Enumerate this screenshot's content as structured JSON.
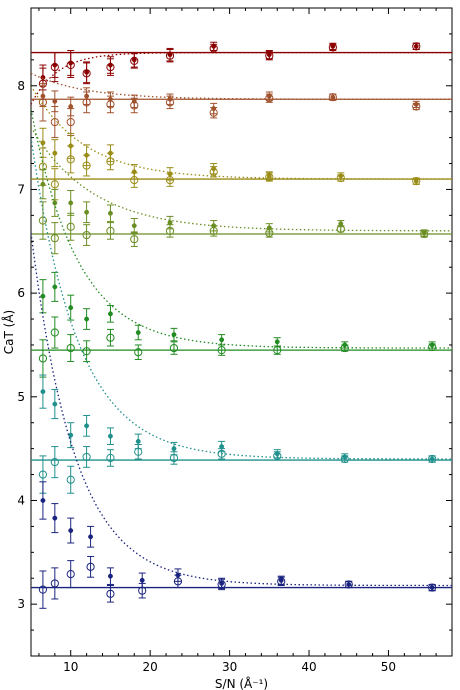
{
  "chart_data": {
    "type": "scatter",
    "xlabel": "S/N (Å⁻¹)",
    "ylabel": "CaT (Å)",
    "xlim": [
      5,
      58
    ],
    "ylim": [
      2.5,
      8.75
    ],
    "x_ticks": [
      10,
      20,
      30,
      40,
      50
    ],
    "y_ticks": [
      3,
      4,
      5,
      6,
      7,
      8
    ],
    "grid": false,
    "legend": "none",
    "series": [
      {
        "color": "#8b0000",
        "reference_value": 8.32,
        "fit_curve": {
          "asymptote": 8.32,
          "amplitude": -0.5,
          "decay": 0.3
        },
        "filled": [
          [
            6.5,
            8.08
          ],
          [
            8,
            8.2
          ],
          [
            10,
            8.22
          ],
          [
            12,
            8.13
          ],
          [
            15,
            8.2
          ],
          [
            18,
            8.25
          ],
          [
            22.5,
            8.3
          ],
          [
            28,
            8.38
          ],
          [
            35,
            8.3
          ],
          [
            43,
            8.38
          ],
          [
            53.5,
            8.38
          ]
        ],
        "filled_err": [
          0.12,
          0.12,
          0.12,
          0.1,
          0.08,
          0.07,
          0.06,
          0.04,
          0.04,
          0.03,
          0.03
        ],
        "open": [
          [
            6.5,
            8.02
          ],
          [
            8,
            8.18
          ],
          [
            10,
            8.2
          ],
          [
            12,
            8.12
          ],
          [
            15,
            8.18
          ],
          [
            18,
            8.24
          ],
          [
            22.5,
            8.29
          ],
          [
            28,
            8.36
          ],
          [
            35,
            8.29
          ],
          [
            43,
            8.37
          ],
          [
            53.5,
            8.38
          ]
        ],
        "open_err": [
          0.15,
          0.14,
          0.12,
          0.1,
          0.08,
          0.07,
          0.06,
          0.04,
          0.04,
          0.03,
          0.03
        ]
      },
      {
        "color": "#a0522d",
        "reference_value": 7.87,
        "fit_curve": {
          "asymptote": 7.87,
          "amplitude": 0.25,
          "decay": 0.15
        },
        "filled": [
          [
            6.5,
            7.9
          ],
          [
            8,
            7.85
          ],
          [
            10,
            7.8
          ],
          [
            12,
            7.9
          ],
          [
            15,
            7.87
          ],
          [
            18,
            7.85
          ],
          [
            22.5,
            7.87
          ],
          [
            28,
            7.78
          ],
          [
            35,
            7.9
          ],
          [
            43,
            7.89
          ],
          [
            53.5,
            7.82
          ]
        ],
        "filled_err": [
          0.1,
          0.1,
          0.09,
          0.08,
          0.07,
          0.06,
          0.05,
          0.05,
          0.04,
          0.03,
          0.03
        ],
        "open": [
          [
            6.5,
            7.84
          ],
          [
            8,
            7.65
          ],
          [
            10,
            7.65
          ],
          [
            12,
            7.84
          ],
          [
            15,
            7.82
          ],
          [
            18,
            7.81
          ],
          [
            22.5,
            7.84
          ],
          [
            28,
            7.74
          ],
          [
            35,
            7.88
          ],
          [
            43,
            7.89
          ],
          [
            53.5,
            7.8
          ]
        ],
        "open_err": [
          0.18,
          0.15,
          0.13,
          0.1,
          0.08,
          0.07,
          0.06,
          0.05,
          0.04,
          0.03,
          0.03
        ]
      },
      {
        "color": "#9a8c16",
        "reference_value": 7.1,
        "fit_curve": {
          "asymptote": 7.1,
          "amplitude": 0.9,
          "decay": 0.15
        },
        "filled": [
          [
            6.5,
            7.45
          ],
          [
            8,
            7.35
          ],
          [
            10,
            7.42
          ],
          [
            12,
            7.33
          ],
          [
            15,
            7.35
          ],
          [
            18,
            7.17
          ],
          [
            22.5,
            7.15
          ],
          [
            28,
            7.2
          ],
          [
            35,
            7.13
          ],
          [
            44,
            7.13
          ],
          [
            53.5,
            7.08
          ]
        ],
        "filled_err": [
          0.14,
          0.13,
          0.12,
          0.1,
          0.08,
          0.07,
          0.06,
          0.05,
          0.04,
          0.03,
          0.03
        ],
        "open": [
          [
            6.5,
            7.22
          ],
          [
            8,
            7.05
          ],
          [
            10,
            7.29
          ],
          [
            12,
            7.23
          ],
          [
            15,
            7.27
          ],
          [
            18,
            7.09
          ],
          [
            22.5,
            7.09
          ],
          [
            28,
            7.17
          ],
          [
            35,
            7.12
          ],
          [
            44,
            7.11
          ],
          [
            53.5,
            7.08
          ]
        ],
        "open_err": [
          0.18,
          0.15,
          0.13,
          0.1,
          0.08,
          0.07,
          0.06,
          0.05,
          0.04,
          0.03,
          0.03
        ]
      },
      {
        "color": "#6b8e23",
        "reference_value": 6.57,
        "fit_curve": {
          "asymptote": 6.6,
          "amplitude": 1.0,
          "decay": 0.13
        },
        "filled": [
          [
            6.5,
            7.05
          ],
          [
            8,
            6.87
          ],
          [
            10,
            6.87
          ],
          [
            12,
            6.78
          ],
          [
            15,
            6.77
          ],
          [
            18,
            6.65
          ],
          [
            22.5,
            6.68
          ],
          [
            28,
            6.65
          ],
          [
            35,
            6.63
          ],
          [
            44,
            6.67
          ],
          [
            54.5,
            6.58
          ]
        ],
        "filled_err": [
          0.14,
          0.13,
          0.12,
          0.1,
          0.08,
          0.07,
          0.06,
          0.05,
          0.04,
          0.03,
          0.03
        ],
        "open": [
          [
            6.5,
            6.7
          ],
          [
            8,
            6.53
          ],
          [
            10,
            6.64
          ],
          [
            12,
            6.56
          ],
          [
            15,
            6.6
          ],
          [
            18,
            6.52
          ],
          [
            22.5,
            6.6
          ],
          [
            28,
            6.6
          ],
          [
            35,
            6.58
          ],
          [
            44,
            6.62
          ],
          [
            54.5,
            6.57
          ]
        ],
        "open_err": [
          0.18,
          0.15,
          0.13,
          0.1,
          0.08,
          0.07,
          0.06,
          0.05,
          0.04,
          0.03,
          0.03
        ]
      },
      {
        "color": "#228b22",
        "reference_value": 5.45,
        "fit_curve": {
          "asymptote": 5.47,
          "amplitude": 2.3,
          "decay": 0.17
        },
        "filled": [
          [
            6.5,
            5.97
          ],
          [
            8,
            6.06
          ],
          [
            10,
            5.86
          ],
          [
            12,
            5.75
          ],
          [
            15,
            5.8
          ],
          [
            18.5,
            5.62
          ],
          [
            23,
            5.6
          ],
          [
            29,
            5.55
          ],
          [
            36,
            5.53
          ],
          [
            44.5,
            5.5
          ],
          [
            55.5,
            5.5
          ]
        ],
        "filled_err": [
          0.16,
          0.14,
          0.12,
          0.1,
          0.08,
          0.07,
          0.06,
          0.05,
          0.04,
          0.03,
          0.03
        ],
        "open": [
          [
            6.5,
            5.37
          ],
          [
            8,
            5.62
          ],
          [
            10,
            5.47
          ],
          [
            12,
            5.44
          ],
          [
            15,
            5.57
          ],
          [
            18.5,
            5.43
          ],
          [
            23,
            5.47
          ],
          [
            29,
            5.45
          ],
          [
            36,
            5.45
          ],
          [
            44.5,
            5.47
          ],
          [
            55.5,
            5.48
          ]
        ],
        "open_err": [
          0.18,
          0.15,
          0.13,
          0.1,
          0.08,
          0.07,
          0.06,
          0.05,
          0.04,
          0.03,
          0.03
        ]
      },
      {
        "color": "#20908c",
        "reference_value": 4.39,
        "fit_curve": {
          "asymptote": 4.4,
          "amplitude": 3.1,
          "decay": 0.17
        },
        "filled": [
          [
            6.5,
            5.05
          ],
          [
            8,
            4.93
          ],
          [
            10,
            4.63
          ],
          [
            12,
            4.72
          ],
          [
            15,
            4.62
          ],
          [
            18.5,
            4.57
          ],
          [
            23,
            4.5
          ],
          [
            29,
            4.52
          ],
          [
            36,
            4.45
          ],
          [
            44.5,
            4.42
          ],
          [
            55.5,
            4.4
          ]
        ],
        "filled_err": [
          0.16,
          0.14,
          0.12,
          0.1,
          0.08,
          0.07,
          0.06,
          0.05,
          0.04,
          0.03,
          0.03
        ],
        "open": [
          [
            6.5,
            4.25
          ],
          [
            8,
            4.37
          ],
          [
            10,
            4.2
          ],
          [
            12,
            4.42
          ],
          [
            15,
            4.41
          ],
          [
            18.5,
            4.47
          ],
          [
            23,
            4.41
          ],
          [
            29,
            4.45
          ],
          [
            36,
            4.43
          ],
          [
            44.5,
            4.4
          ],
          [
            55.5,
            4.4
          ]
        ],
        "open_err": [
          0.18,
          0.15,
          0.13,
          0.1,
          0.08,
          0.07,
          0.06,
          0.05,
          0.04,
          0.03,
          0.03
        ]
      },
      {
        "color": "#1a237e",
        "reference_value": 3.16,
        "fit_curve": {
          "asymptote": 3.18,
          "amplitude": 3.4,
          "decay": 0.18
        },
        "filled": [
          [
            6.5,
            4.0
          ],
          [
            8,
            3.83
          ],
          [
            10,
            3.71
          ],
          [
            12.5,
            3.65
          ],
          [
            15,
            3.27
          ],
          [
            19,
            3.23
          ],
          [
            23.5,
            3.28
          ],
          [
            29,
            3.2
          ],
          [
            36.5,
            3.23
          ],
          [
            45,
            3.19
          ],
          [
            55.5,
            3.16
          ]
        ],
        "filled_err": [
          0.18,
          0.14,
          0.12,
          0.1,
          0.08,
          0.07,
          0.06,
          0.05,
          0.04,
          0.03,
          0.03
        ],
        "open": [
          [
            6.5,
            3.14
          ],
          [
            8,
            3.2
          ],
          [
            10,
            3.29
          ],
          [
            12.5,
            3.36
          ],
          [
            15,
            3.1
          ],
          [
            19,
            3.13
          ],
          [
            23.5,
            3.22
          ],
          [
            29,
            3.19
          ],
          [
            36.5,
            3.22
          ],
          [
            45,
            3.19
          ],
          [
            55.5,
            3.16
          ]
        ],
        "open_err": [
          0.18,
          0.15,
          0.13,
          0.1,
          0.08,
          0.07,
          0.06,
          0.05,
          0.04,
          0.03,
          0.03
        ]
      }
    ]
  }
}
